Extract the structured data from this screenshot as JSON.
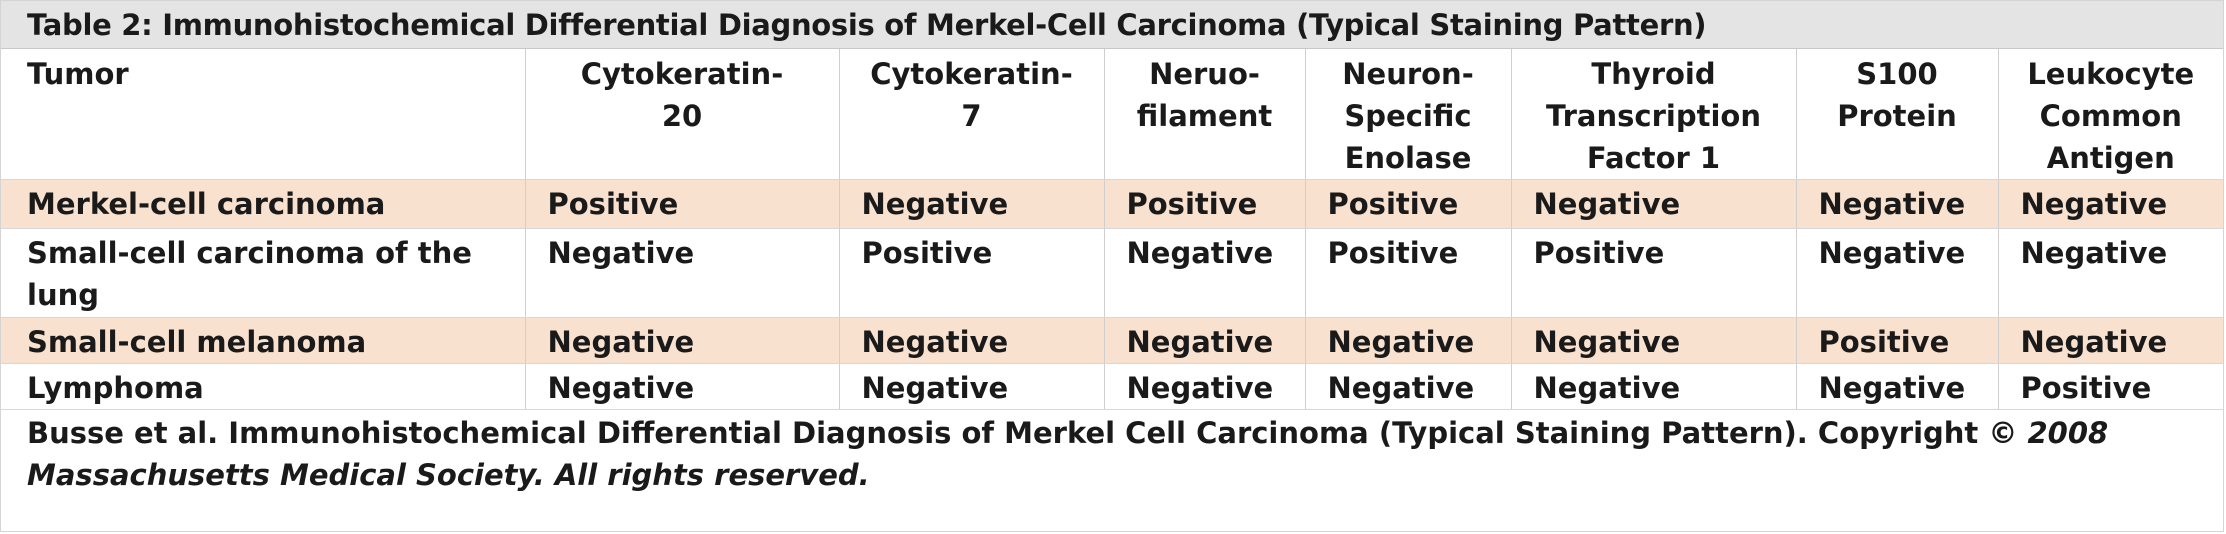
{
  "table": {
    "title": "Table 2: Immunohistochemical  Differential Diagnosis of Merkel-Cell Carcinoma  (Typical Staining Pattern)",
    "header": {
      "tumor": "Tumor",
      "columns": [
        "Cytokeratin-\n20",
        "Cytokeratin-\n7",
        "Neruo-\nfilament",
        "Neuron-\nSpecific\nEnolase",
        "Thyroid\nTranscription\nFactor 1",
        "S100\nProtein",
        "Leukocyte\nCommon\nAntigen"
      ]
    },
    "rows": [
      {
        "tumor": "Merkel-cell carcinoma",
        "values": [
          "Positive",
          "Negative",
          "Positive",
          "Positive",
          "Negative",
          "Negative",
          "Negative"
        ],
        "shaded": true
      },
      {
        "tumor": "Small-cell carcinoma of the lung",
        "values": [
          "Negative",
          "Positive",
          "Negative",
          "Positive",
          "Positive",
          "Negative",
          "Negative"
        ],
        "shaded": false
      },
      {
        "tumor": "Small-cell melanoma",
        "values": [
          "Negative",
          "Negative",
          "Negative",
          "Negative",
          "Negative",
          "Positive",
          "Negative"
        ],
        "shaded": true
      },
      {
        "tumor": "Lymphoma",
        "values": [
          "Negative",
          "Negative",
          "Negative",
          "Negative",
          "Negative",
          "Negative",
          "Positive"
        ],
        "shaded": false
      }
    ],
    "footnote": {
      "text": "Busse et al. Immunohistochemical  Differential Diagnosis of Merkel Cell Carcinoma  (Typical Staining Pattern).  Copyright ",
      "italic": "© 2008 Massachusetts Medical Society. All rights reserved."
    }
  },
  "colors": {
    "title_bar": "#e4e4e4",
    "row_shade": "#f9e1cf",
    "text": "#1a1a1a"
  }
}
